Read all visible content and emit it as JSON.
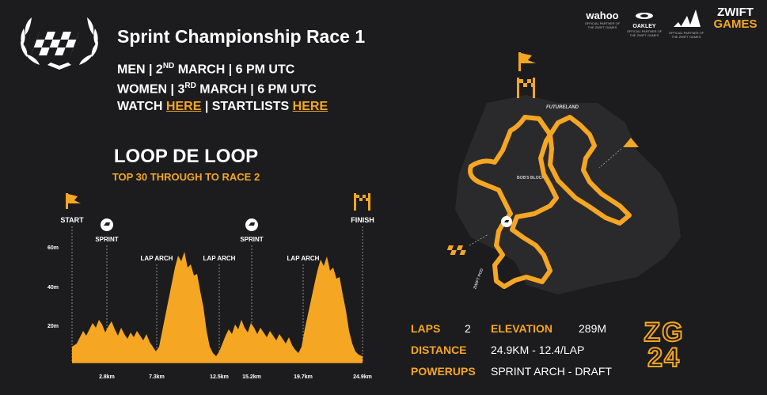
{
  "race": {
    "title": "Sprint Championship Race 1",
    "men": {
      "label": "MEN | 2",
      "sup": "ND",
      "rest": " MARCH | 6 PM UTC"
    },
    "women": {
      "label": "WOMEN | 3",
      "sup": "RD",
      "rest": " MARCH | 6 PM UTC"
    },
    "watch_prefix": "WATCH ",
    "watch_link": "HERE",
    "startlists_prefix": " | STARTLISTS ",
    "startlists_link": "HERE"
  },
  "route": {
    "name": "LOOP DE LOOP",
    "subtitle": "TOP 30 THROUGH TO RACE 2"
  },
  "profile": {
    "start_label": "START",
    "finish_label": "FINISH",
    "y_ticks": [
      "60m",
      "40m",
      "20m"
    ],
    "x_ticks": [
      "2.8km",
      "7.3km",
      "12.5km",
      "15.2km",
      "19.7km",
      "24.9km"
    ],
    "markers": [
      "SPRINT",
      "LAP ARCH",
      "LAP ARCH",
      "SPRINT",
      "LAP ARCH"
    ],
    "fill_color": "#f5a623"
  },
  "map": {
    "labels": [
      "FUTURELAND",
      "BOB'S BLOCKS",
      "ZWIFT POD"
    ]
  },
  "stats": {
    "laps_label": "LAPS",
    "laps_value": "2",
    "elevation_label": "ELEVATION",
    "elevation_value": "289M",
    "distance_label": "DISTANCE",
    "distance_value": "24.9KM - 12.4/LAP",
    "powerups_label": "POWERUPS",
    "powerups_value": "SPRINT ARCH - DRAFT"
  },
  "sponsors": {
    "wahoo": "wahoo",
    "oakley": "OAKLEY",
    "zwift": "ZWIFT",
    "games": "GAMES",
    "partner_text": "OFFICIAL PARTNER OF THE ZWIFT GAMES"
  },
  "logo": {
    "zg": "ZG",
    "year": "24"
  }
}
